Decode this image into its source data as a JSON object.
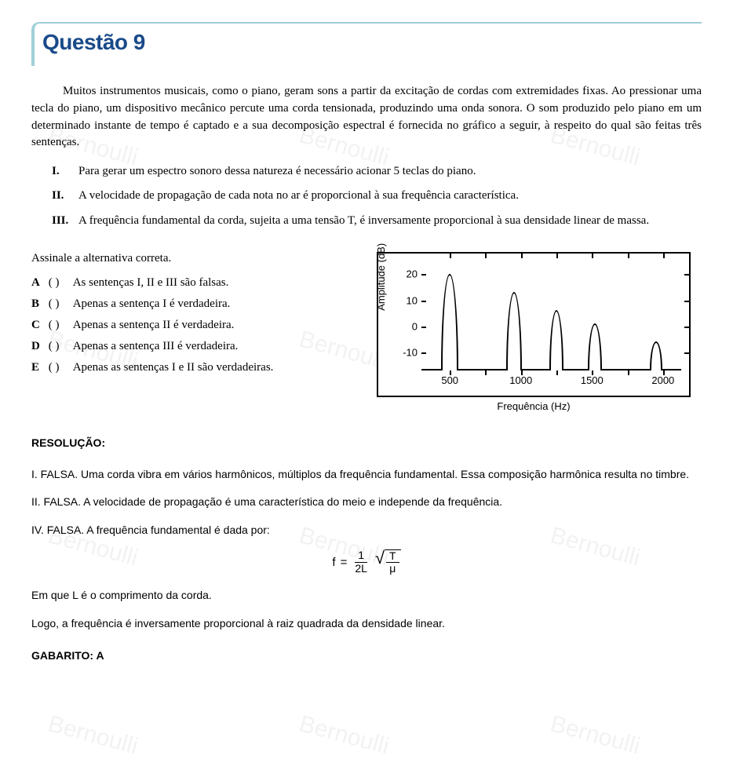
{
  "header": {
    "title": "Questão 9"
  },
  "question": {
    "intro": "Muitos instrumentos musicais, como o piano, geram sons a partir da excitação de cordas com extremidades fixas. Ao pressionar uma tecla do piano, um dispositivo mecânico percute uma corda tensionada, produzindo uma onda sonora. O som produzido pelo piano em um determinado instante de tempo é captado e a sua decomposição espectral é fornecida no gráfico a seguir, à respeito do qual são feitas três sentenças.",
    "statements": [
      {
        "roman": "I.",
        "text": "Para gerar um espectro sonoro dessa natureza é necessário acionar 5 teclas do piano."
      },
      {
        "roman": "II.",
        "text": "A velocidade de propagação de cada nota no ar é proporcional à sua frequência característica."
      },
      {
        "roman": "III.",
        "text": "A frequência fundamental da corda, sujeita a uma tensão T, é inversamente proporcional à sua densidade linear de massa."
      }
    ],
    "prompt": "Assinale a alternativa correta.",
    "options": [
      {
        "letter": "A",
        "paren": "(   )",
        "text": "As sentenças I, II e III são falsas."
      },
      {
        "letter": "B",
        "paren": "(   )",
        "text": "Apenas a sentença I é verdadeira."
      },
      {
        "letter": "C",
        "paren": "(   )",
        "text": "Apenas a sentença II é verdadeira."
      },
      {
        "letter": "D",
        "paren": "(   )",
        "text": "Apenas a sentença III é verdadeira."
      },
      {
        "letter": "E",
        "paren": "(   )",
        "text": "Apenas as sentenças I e II são verdadeiras."
      }
    ]
  },
  "chart": {
    "type": "line-spectrum",
    "xlabel": "Frequência (Hz)",
    "ylabel": "Amplitude (dB)",
    "x_range": [
      300,
      2150
    ],
    "y_range": [
      -18,
      25
    ],
    "x_ticks_major": [
      500,
      1000,
      1500,
      2000
    ],
    "y_ticks": [
      -10,
      0,
      10,
      20
    ],
    "line_color": "#000000",
    "line_width": 2,
    "background_color": "#ffffff",
    "border_color": "#000000",
    "peaks": [
      {
        "freq": 500,
        "amplitude": 19,
        "half_width_hz": 60
      },
      {
        "freq": 950,
        "amplitude": 12,
        "half_width_hz": 55
      },
      {
        "freq": 1250,
        "amplitude": 5,
        "half_width_hz": 50
      },
      {
        "freq": 1520,
        "amplitude": 0,
        "half_width_hz": 50
      },
      {
        "freq": 1950,
        "amplitude": -7,
        "half_width_hz": 45
      }
    ]
  },
  "resolution": {
    "title": "RESOLUÇÃO:",
    "items": [
      "I. FALSA. Uma corda vibra em vários harmônicos, múltiplos da frequência fundamental. Essa composição harmônica resulta no timbre.",
      "II. FALSA. A velocidade de propagação é uma característica do meio e independe da frequência.",
      "IV. FALSA. A frequência fundamental é dada por:"
    ],
    "formula": {
      "lhs": "f",
      "eq": "=",
      "frac_num": "1",
      "frac_den": "2L",
      "rad_num": "T",
      "rad_den": "μ"
    },
    "after_formula_1": "Em que L é o comprimento da corda.",
    "after_formula_2": "Logo, a frequência é inversamente proporcional à raiz quadrada da densidade linear.",
    "gabarito": "GABARITO: A"
  },
  "watermark": {
    "text": "Bernoulli"
  }
}
